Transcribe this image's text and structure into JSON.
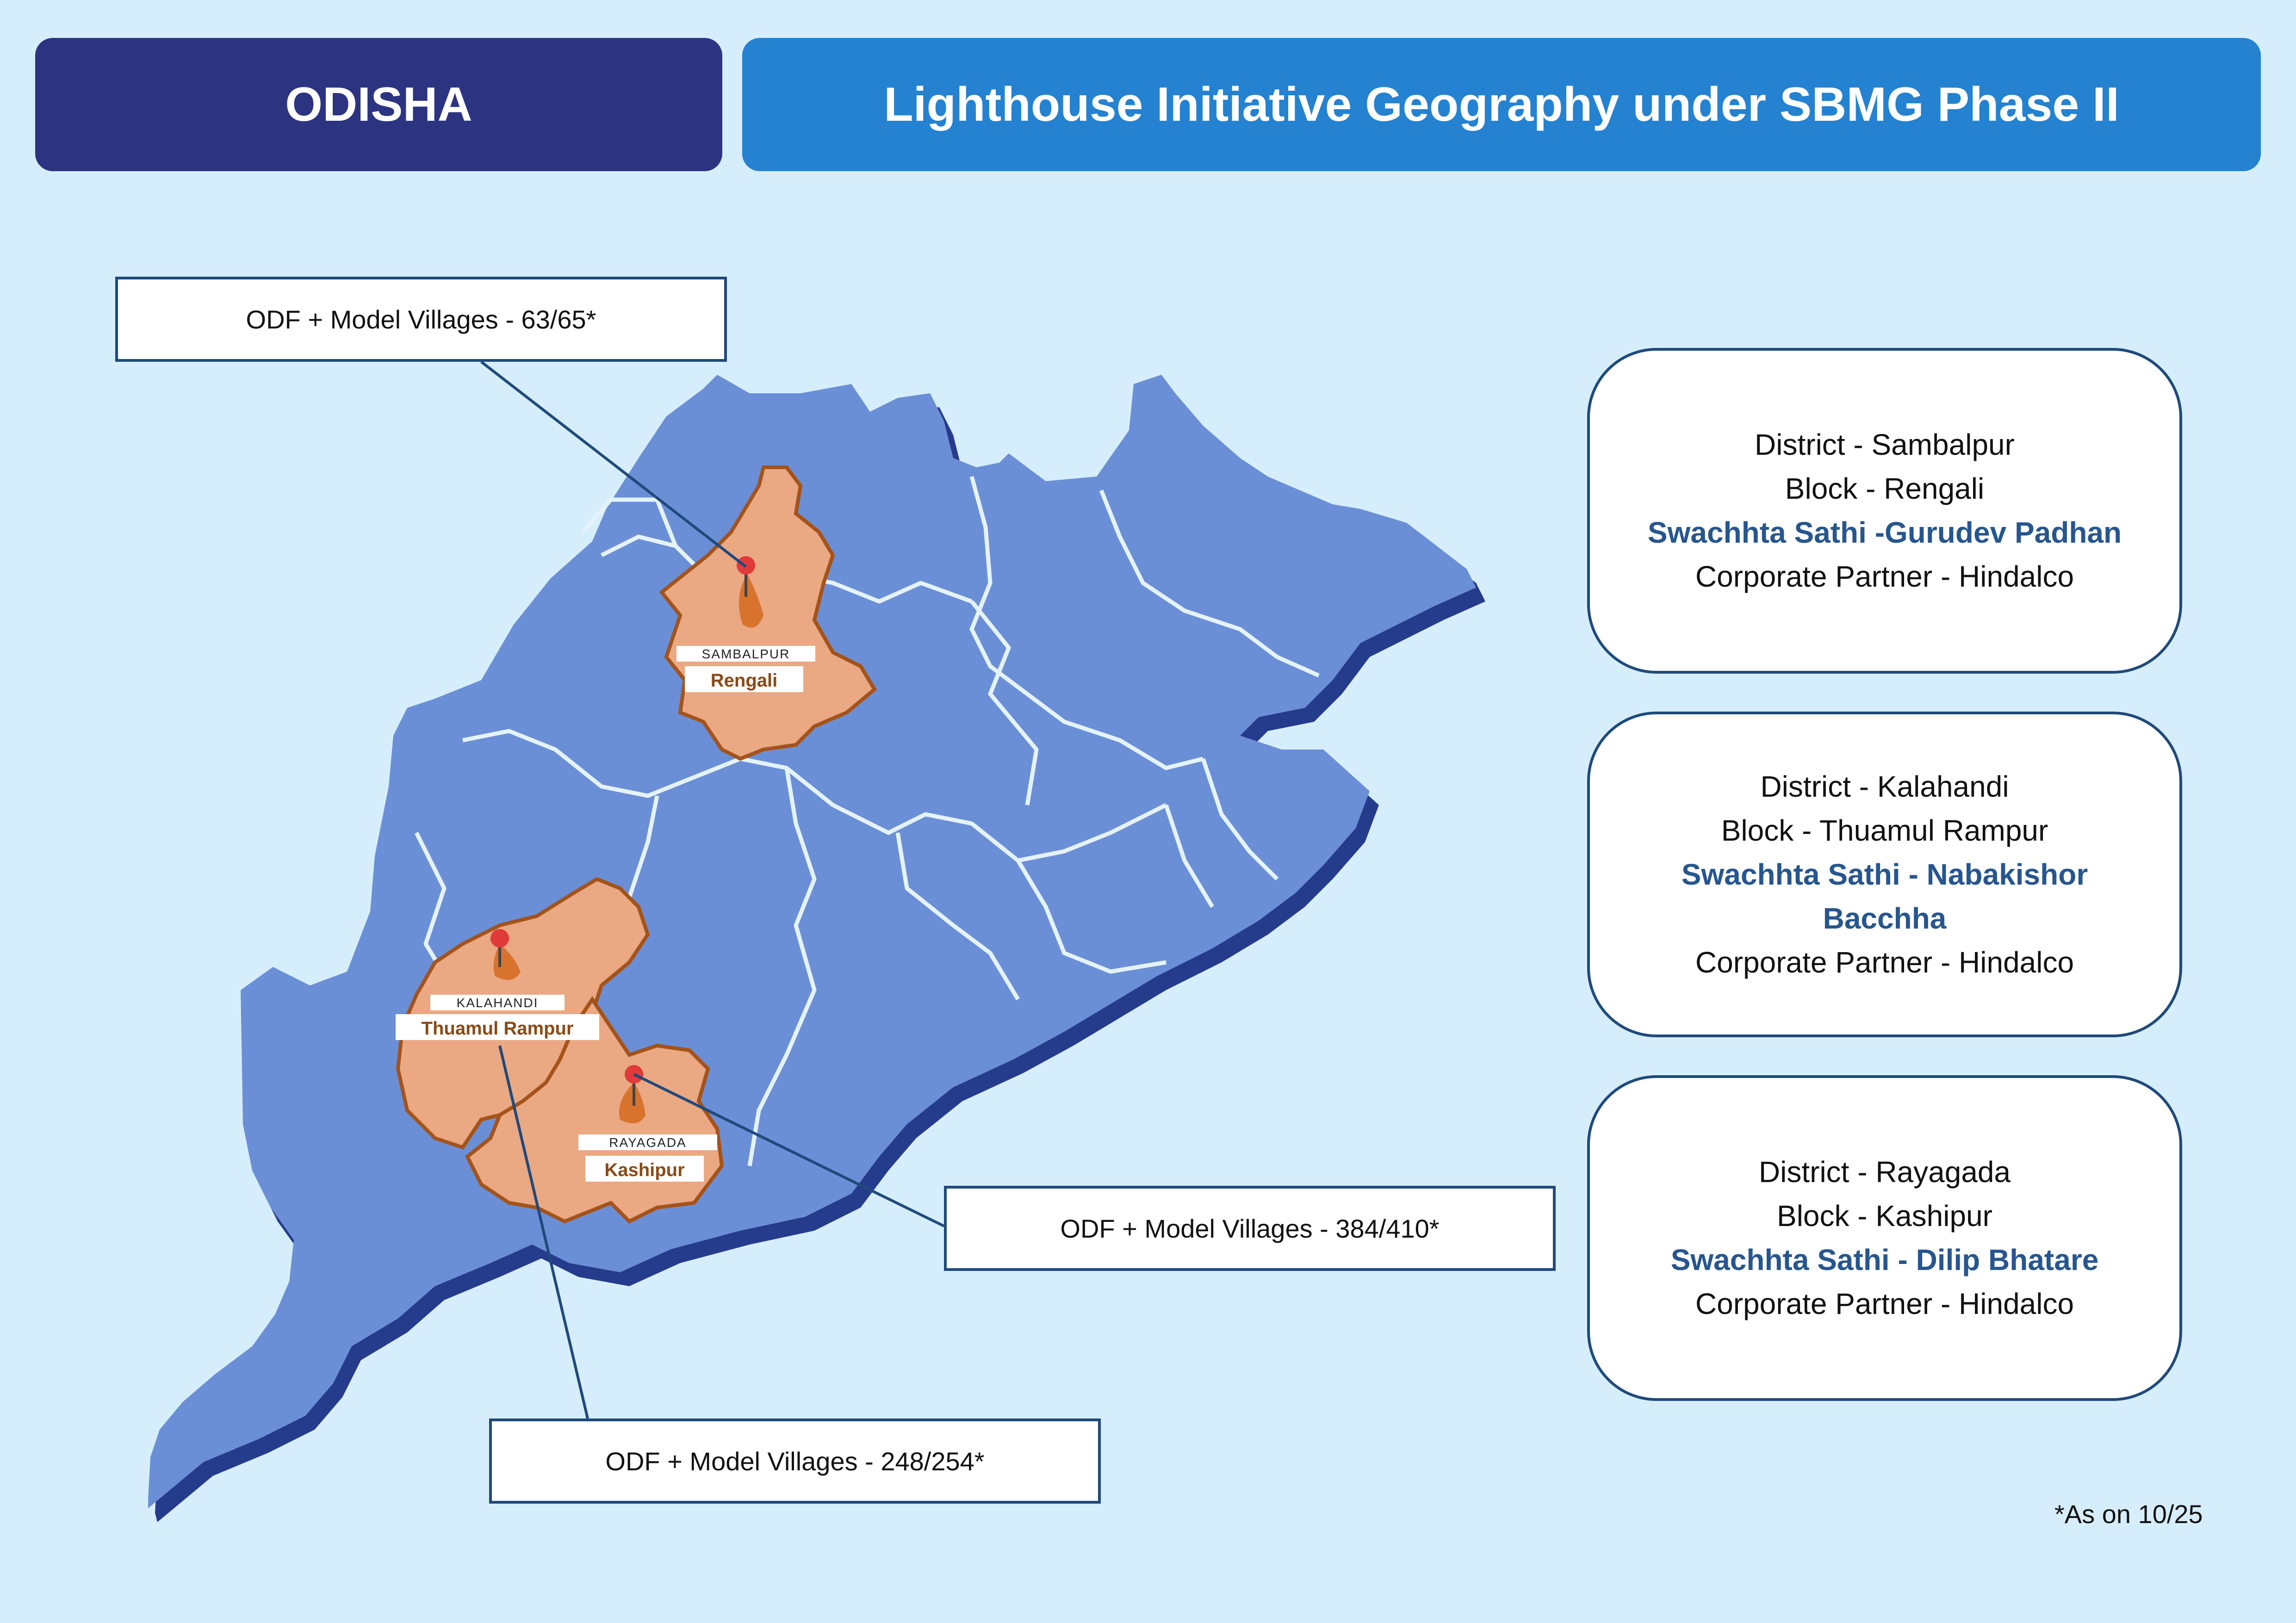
{
  "header": {
    "state": "ODISHA",
    "title": "Lighthouse Initiative Geography under SBMG Phase II"
  },
  "odf_boxes": [
    {
      "text": "ODF + Model Villages - 63/65*"
    },
    {
      "text": "ODF + Model Villages - 384/410*"
    },
    {
      "text": "ODF + Model Villages - 248/254*"
    }
  ],
  "map_labels": [
    {
      "district": "SAMBALPUR",
      "block": "Rengali"
    },
    {
      "district": "KALAHANDI",
      "block": "Thuamul Rampur"
    },
    {
      "district": "RAYAGADA",
      "block": "Kashipur"
    }
  ],
  "cards": [
    {
      "district": "District - Sambalpur",
      "block": "Block - Rengali",
      "sathi": "Swachhta Sathi -Gurudev Padhan",
      "partner": "Corporate Partner - Hindalco"
    },
    {
      "district": "District - Kalahandi",
      "block": "Block - Thuamul Rampur",
      "sathi": "Swachhta Sathi - Nabakishor Bacchha",
      "partner": "Corporate Partner - Hindalco"
    },
    {
      "district": "District - Rayagada",
      "block": "Block - Kashipur",
      "sathi": "Swachhta Sathi - Dilip Bhatare",
      "partner": "Corporate Partner - Hindalco"
    }
  ],
  "footnote": "*As on 10/25",
  "colors": {
    "background": "#d6eefb",
    "state_fill": "#6b8fd6",
    "state_shadow": "#253b8c",
    "highlight_fill": "#eaa883",
    "highlight_border": "#a4531a",
    "header_left": "#2c3482",
    "header_right": "#2482d1",
    "sathi_text": "#27568f"
  }
}
